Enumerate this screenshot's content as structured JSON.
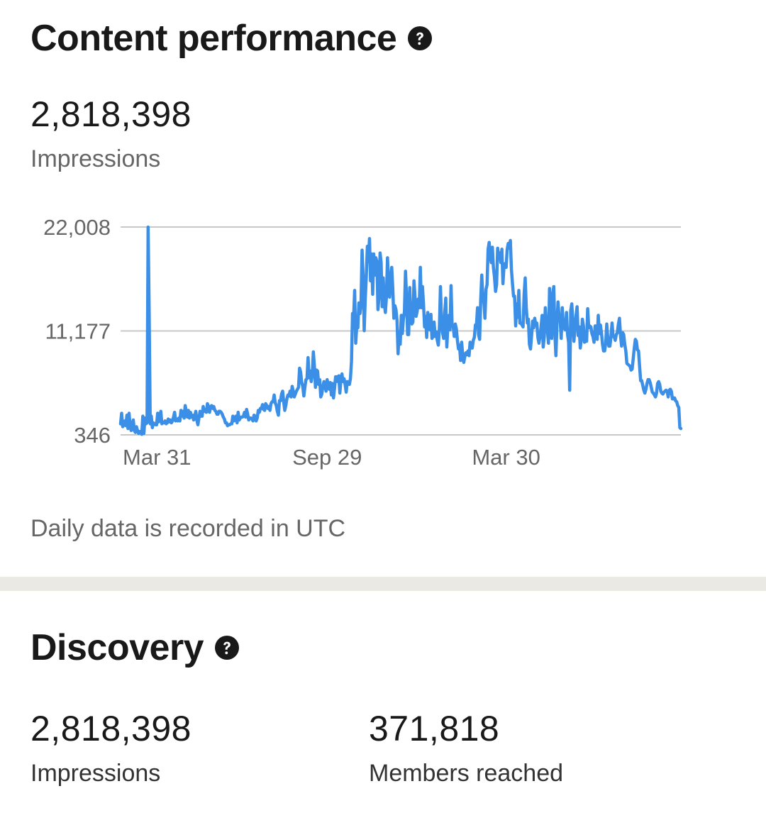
{
  "content_performance": {
    "title": "Content performance",
    "help_icon": "question-circle-icon",
    "impressions_value": "2,818,398",
    "impressions_label": "Impressions",
    "footnote": "Daily data is recorded in UTC"
  },
  "discovery": {
    "title": "Discovery",
    "help_icon": "question-circle-icon",
    "impressions_value": "2,818,398",
    "impressions_label": "Impressions",
    "members_value": "371,818",
    "members_label": "Members reached"
  },
  "colors": {
    "line": "#3b8fe6",
    "gridline": "#c8c8c8",
    "divider": "#ebe9e4"
  },
  "chart_data": {
    "type": "line",
    "title": "",
    "xlabel": "",
    "ylabel": "",
    "y_ticks": [
      "346",
      "11,177",
      "22,008"
    ],
    "y_tick_values": [
      346,
      11177,
      22008
    ],
    "x_tick_labels": [
      "Mar 31",
      "Sep 29",
      "Mar 30"
    ],
    "x_tick_index": [
      12,
      195,
      364
    ],
    "ylim": [
      346,
      22008
    ],
    "grid": true,
    "series": [
      {
        "values": [
          1500,
          2600,
          1200,
          1400,
          1800,
          1300,
          2400,
          1000,
          2600,
          1300,
          800,
          1500,
          1900,
          800,
          600,
          1200,
          800,
          500,
          700,
          600,
          400,
          2300,
          500,
          2100,
          1500,
          1600,
          22000,
          13000,
          1500,
          2300,
          1100,
          1600,
          1500,
          1400,
          1400,
          2600,
          1700,
          2100,
          2800,
          1500,
          1600,
          1600,
          1800,
          1500,
          1600,
          2000,
          1700,
          1900,
          1600,
          1800,
          2200,
          2700,
          1800,
          2000,
          1800,
          2100,
          1800,
          2900,
          2300,
          2800,
          2100,
          3400,
          2800,
          2200,
          2900,
          2100,
          2700,
          2200,
          2400,
          1900,
          2300,
          2800,
          1900,
          1400,
          2100,
          2800,
          2300,
          2300,
          3300,
          2800,
          2800,
          2700,
          3600,
          3300,
          2700,
          3300,
          3400,
          3100,
          3300,
          2900,
          2800,
          2500,
          2500,
          2800,
          2800,
          2700,
          2500,
          2200,
          2000,
          1600,
          1600,
          1300,
          1400,
          1400,
          1500,
          1500,
          2300,
          1800,
          2100,
          2300,
          1600,
          2700,
          1900,
          2100,
          2200,
          2200,
          2300,
          2700,
          2200,
          3000,
          2500,
          1900,
          2100,
          2100,
          2000,
          1800,
          2400,
          2300,
          1800,
          2100,
          2900,
          2700,
          3100,
          3100,
          3500,
          3000,
          2900,
          3600,
          3400,
          3100,
          3300,
          2900,
          3600,
          3800,
          3800,
          4500,
          3700,
          3400,
          2800,
          2400,
          3900,
          3900,
          4600,
          4900,
          3800,
          2900,
          3400,
          4100,
          4500,
          4400,
          4900,
          4300,
          5400,
          4900,
          4300,
          4600,
          4900,
          5100,
          5300,
          7300,
          6900,
          5800,
          5400,
          4400,
          5300,
          6100,
          6200,
          8400,
          6300,
          7000,
          5900,
          6700,
          9000,
          7500,
          5300,
          7100,
          7000,
          5600,
          6100,
          4300,
          4600,
          5400,
          5900,
          5500,
          4900,
          6100,
          5600,
          5100,
          5800,
          4500,
          5700,
          4200,
          5200,
          6400,
          6400,
          5900,
          6500,
          4700,
          6000,
          6700,
          5900,
          6200,
          5600,
          4800,
          5900,
          5800,
          5600,
          6200,
          8000,
          13000,
          12500,
          15400,
          9900,
          11800,
          11500,
          14100,
          13000,
          14000,
          19600,
          16900,
          11200,
          14500,
          16900,
          20000,
          18400,
          20800,
          16400,
          19200,
          15000,
          19200,
          17000,
          18800,
          18400,
          13400,
          14800,
          19300,
          18300,
          13700,
          16700,
          14000,
          13100,
          14700,
          18800,
          16300,
          14700,
          16600,
          17800,
          15600,
          12500,
          13800,
          13400,
          12300,
          8800,
          11100,
          9800,
          12800,
          10900,
          12400,
          13200,
          17400,
          14700,
          10800,
          10800,
          15700,
          12300,
          11900,
          12100,
          16400,
          14700,
          12700,
          13200,
          14500,
          13600,
          17800,
          13600,
          15800,
          14000,
          11600,
          12700,
          10500,
          13100,
          12300,
          11300,
          12900,
          10400,
          10600,
          12100,
          10600,
          11100,
          10200,
          9700,
          11500,
          15800,
          12300,
          11000,
          10400,
          13000,
          14600,
          9500,
          11700,
          12800,
          11300,
          15900,
          11700,
          11700,
          10600,
          11900,
          11400,
          10200,
          9300,
          9700,
          8100,
          10000,
          8700,
          7900,
          8500,
          8900,
          8700,
          9100,
          8600,
          10000,
          9400,
          9400,
          10200,
          10500,
          11800,
          11800,
          13600,
          10800,
          10300,
          14400,
          17000,
          14800,
          14200,
          12500,
          15500,
          16000,
          19700,
          20400,
          19100,
          18300,
          19900,
          17800,
          16800,
          15300,
          16000,
          19800,
          18900,
          19300,
          18300,
          19700,
          16100,
          17900,
          18200,
          17800,
          19700,
          20300,
          19800,
          20600,
          17600,
          16100,
          14800,
          14800,
          11700,
          14000,
          12600,
          15400,
          12000,
          12000,
          11800,
          11600,
          15000,
          16700,
          13700,
          12000,
          12400,
          9800,
          9300,
          10600,
          12200,
          11500,
          12500,
          11800,
          12000,
          10500,
          9900,
          10600,
          11600,
          12800,
          9500,
          10600,
          13600,
          11900,
          11200,
          9900,
          15600,
          13000,
          10400,
          15000,
          15800,
          11000,
          8600,
          11900,
          14200,
          12600,
          12400,
          10400,
          13600,
          11700,
          11400,
          11300,
          13100,
          10800,
          10000,
          5000,
          13300,
          14000,
          12000,
          10100,
          11500,
          12800,
          13700,
          10700,
          11600,
          9400,
          10300,
          12400,
          11700,
          10000,
          11000,
          10100,
          13500,
          11500,
          11700,
          11600,
          10900,
          10600,
          10000,
          11700,
          10900,
          10300,
          12800,
          10900,
          11800,
          11000,
          9800,
          9100,
          9100,
          9900,
          11900,
          10400,
          9600,
          9600,
          10600,
          12000,
          10600,
          10600,
          10200,
          10800,
          11000,
          11900,
          12500,
          10700,
          9600,
          11000,
          10800,
          9800,
          9100,
          7800,
          7700,
          7600,
          7500,
          7100,
          7200,
          8300,
          9400,
          10300,
          10100,
          9200,
          9100,
          7500,
          6000,
          6000,
          5500,
          5000,
          4700,
          5100,
          5700,
          6100,
          6100,
          5800,
          5300,
          4800,
          4700,
          4500,
          4300,
          4700,
          5700,
          5900,
          5600,
          4900,
          4700,
          4600,
          4800,
          4900,
          5000,
          4900,
          4300,
          5000,
          5100,
          4900,
          4100,
          4100,
          4200,
          3900,
          3800,
          3400,
          3200,
          1100,
          1000
        ]
      }
    ]
  }
}
